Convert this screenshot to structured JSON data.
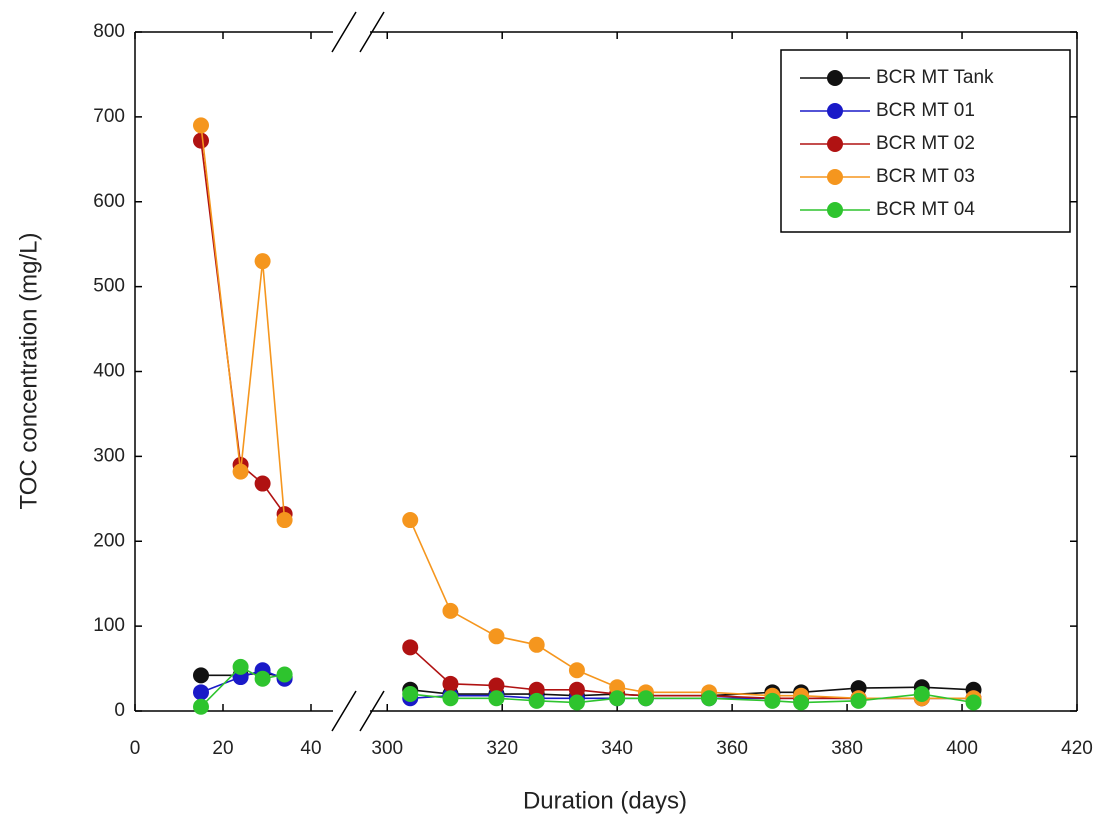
{
  "chart_data": {
    "type": "line",
    "xlabel": "Duration (days)",
    "ylabel": "TOC concentration (mg/L)",
    "x_segments": [
      {
        "xlim": [
          0,
          45
        ],
        "xticks": [
          0,
          20,
          40
        ]
      },
      {
        "xlim": [
          297,
          420
        ],
        "xticks": [
          300,
          320,
          340,
          360,
          380,
          400,
          420
        ]
      }
    ],
    "ylim": [
      0,
      800
    ],
    "yticks": [
      0,
      100,
      200,
      300,
      400,
      500,
      600,
      700,
      800
    ],
    "legend": "upper right",
    "x": [
      15,
      24,
      29,
      34,
      304,
      311,
      319,
      326,
      333,
      340,
      345,
      356,
      367,
      372,
      382,
      393,
      402
    ],
    "series": [
      {
        "name": "BCR MT Tank",
        "color": "#111111",
        "values": [
          42,
          42,
          45,
          40,
          25,
          20,
          20,
          20,
          18,
          20,
          18,
          18,
          22,
          22,
          27,
          28,
          25
        ]
      },
      {
        "name": "BCR MT 01",
        "color": "#1a1ac8",
        "values": [
          22,
          40,
          48,
          38,
          15,
          18,
          18,
          15,
          15,
          15,
          15,
          15,
          15,
          15,
          15,
          15,
          15
        ]
      },
      {
        "name": "BCR MT 02",
        "color": "#b01212",
        "values": [
          672,
          290,
          268,
          232,
          75,
          32,
          30,
          25,
          25,
          20,
          18,
          18,
          15,
          15,
          15,
          15,
          15
        ]
      },
      {
        "name": "BCR MT 03",
        "color": "#f5961e",
        "values": [
          690,
          282,
          530,
          225,
          225,
          118,
          88,
          78,
          48,
          28,
          22,
          22,
          18,
          18,
          15,
          15,
          15
        ]
      },
      {
        "name": "BCR MT 04",
        "color": "#2ec42e",
        "values": [
          5,
          52,
          38,
          43,
          20,
          15,
          15,
          12,
          10,
          15,
          15,
          15,
          12,
          10,
          12,
          20,
          10
        ]
      }
    ]
  }
}
